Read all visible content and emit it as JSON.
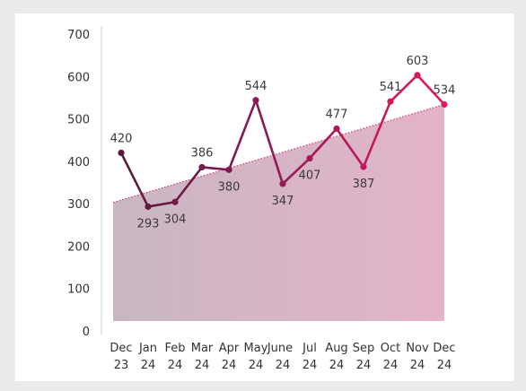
{
  "chart_data": {
    "type": "line",
    "title": "",
    "xlabel": "",
    "ylabel": "",
    "categories": [
      {
        "month": "Dec",
        "year": "23"
      },
      {
        "month": "Jan",
        "year": "24"
      },
      {
        "month": "Feb",
        "year": "24"
      },
      {
        "month": "Mar",
        "year": "24"
      },
      {
        "month": "Apr",
        "year": "24"
      },
      {
        "month": "May",
        "year": "24"
      },
      {
        "month": "June",
        "year": "24"
      },
      {
        "month": "Jul",
        "year": "24"
      },
      {
        "month": "Aug",
        "year": "24"
      },
      {
        "month": "Sep",
        "year": "24"
      },
      {
        "month": "Oct",
        "year": "24"
      },
      {
        "month": "Nov",
        "year": "24"
      },
      {
        "month": "Dec",
        "year": "24"
      }
    ],
    "values": [
      420,
      293,
      304,
      386,
      380,
      544,
      347,
      407,
      477,
      387,
      541,
      603,
      534
    ],
    "value_labels": [
      "420",
      "293",
      "304",
      "386",
      "380",
      "544",
      "347",
      "407",
      "477",
      "387",
      "541",
      "603",
      "534"
    ],
    "label_position": [
      "above",
      "below",
      "below",
      "above",
      "below",
      "above",
      "below",
      "below",
      "above",
      "below",
      "above",
      "above",
      "above"
    ],
    "y_ticks": [
      "0",
      "100",
      "200",
      "300",
      "400",
      "500",
      "600",
      "700"
    ],
    "ylim": [
      0,
      700
    ],
    "trendline": {
      "start": 303,
      "end": 534,
      "style": "dotted"
    },
    "grid": false,
    "legend": "none",
    "colors": {
      "line_start": "#5a1a3a",
      "line_mid": "#8c1a55",
      "line_end": "#e8185f",
      "area_start": "#c9b6c3",
      "area_end": "#e3b3c9",
      "trend": "#d63a6a",
      "axis": "#cccccc"
    }
  }
}
